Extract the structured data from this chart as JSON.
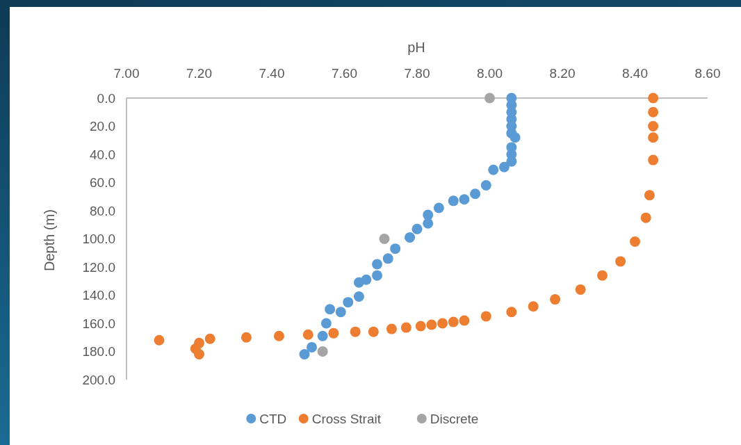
{
  "chart_data": {
    "type": "scatter",
    "xlabel": "pH",
    "ylabel": "Depth (m)",
    "xlim": [
      7.0,
      8.6
    ],
    "xticks": [
      {
        "value": 7.0,
        "label": "7.00"
      },
      {
        "value": 7.2,
        "label": "7.20"
      },
      {
        "value": 7.4,
        "label": "7.40"
      },
      {
        "value": 7.6,
        "label": "7.60"
      },
      {
        "value": 7.8,
        "label": "7.80"
      },
      {
        "value": 8.0,
        "label": "8.00"
      },
      {
        "value": 8.2,
        "label": "8.20"
      },
      {
        "value": 8.4,
        "label": "8.40"
      },
      {
        "value": 8.6,
        "label": "8.60"
      }
    ],
    "ylim": [
      200,
      0
    ],
    "yticks": [
      {
        "value": 0,
        "label": "0.0"
      },
      {
        "value": 20,
        "label": "20.0"
      },
      {
        "value": 40,
        "label": "40.0"
      },
      {
        "value": 60,
        "label": "60.0"
      },
      {
        "value": 80,
        "label": "80.0"
      },
      {
        "value": 100,
        "label": "100.0"
      },
      {
        "value": 120,
        "label": "120.0"
      },
      {
        "value": 140,
        "label": "140.0"
      },
      {
        "value": 160,
        "label": "160.0"
      },
      {
        "value": 180,
        "label": "180.0"
      },
      {
        "value": 200,
        "label": "200.0"
      }
    ],
    "grid": false,
    "legend": "bottom",
    "marker": "circle",
    "series": [
      {
        "name": "CTD",
        "color": "#5b9bd5",
        "x": [
          8.06,
          8.06,
          8.06,
          8.06,
          8.06,
          8.06,
          null,
          8.06,
          8.06,
          8.07,
          8.06,
          8.04,
          8.01,
          7.99,
          7.96,
          7.93,
          7.9,
          7.86,
          7.83,
          7.83,
          7.8,
          7.78,
          7.74,
          7.72,
          7.69,
          7.69,
          7.66,
          7.64,
          7.64,
          7.61,
          7.56,
          7.59,
          7.55,
          7.54,
          7.51,
          7.49
        ],
        "values": [
          0,
          5,
          10,
          15,
          20,
          25,
          null,
          35,
          40,
          28,
          45,
          49,
          51,
          62,
          68,
          72,
          73,
          78,
          83,
          89,
          93,
          99,
          107,
          114,
          118,
          126,
          129,
          131,
          141,
          145,
          150,
          152,
          160,
          169,
          177,
          182
        ]
      },
      {
        "name": "Cross Strait",
        "color": "#ed7d31",
        "x": [
          8.45,
          8.45,
          8.45,
          8.45,
          8.45,
          8.44,
          8.43,
          8.4,
          8.36,
          8.31,
          8.25,
          8.18,
          8.12,
          8.06,
          7.99,
          7.93,
          7.9,
          7.87,
          7.84,
          7.81,
          7.77,
          7.73,
          7.68,
          7.63,
          7.57,
          7.5,
          7.42,
          7.33,
          7.23,
          7.09,
          7.2,
          7.19,
          7.2
        ],
        "values": [
          0,
          10,
          20,
          28,
          44,
          69,
          85,
          102,
          116,
          126,
          136,
          143,
          148,
          152,
          155,
          158,
          159,
          160,
          161,
          162,
          163,
          164,
          166,
          166,
          167,
          168,
          169,
          170,
          171,
          172,
          174,
          178,
          182
        ]
      },
      {
        "name": "Discrete",
        "color": "#a5a5a5",
        "x": [
          8.0,
          7.71,
          7.54
        ],
        "values": [
          0,
          100,
          180
        ]
      }
    ]
  }
}
